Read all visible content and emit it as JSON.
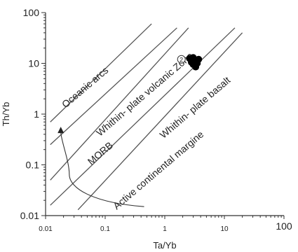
{
  "chart_data": {
    "type": "scatter",
    "xlabel": "Ta/Yb",
    "ylabel": "Th/Yb",
    "x_scale": "log",
    "y_scale": "log",
    "xlim": [
      0.01,
      100
    ],
    "ylim": [
      0.01,
      100
    ],
    "grid": false,
    "x_ticks": [
      "0.01",
      "0.1",
      "1",
      "10",
      "100"
    ],
    "y_ticks": [
      "0.01",
      "0.1",
      "1",
      "10",
      "100"
    ],
    "boundary_lines": [
      {
        "x": [
          0.012,
          0.6
        ],
        "y": [
          0.7,
          60
        ]
      },
      {
        "x": [
          0.012,
          1.6
        ],
        "y": [
          0.25,
          50
        ]
      },
      {
        "x": [
          0.012,
          2.5
        ],
        "y": [
          0.05,
          50
        ]
      },
      {
        "x": [
          0.012,
          15
        ],
        "y": [
          0.016,
          50
        ]
      },
      {
        "x": [
          0.035,
          20
        ],
        "y": [
          0.013,
          40
        ]
      }
    ],
    "zone_labels": [
      {
        "text": "Oceanic arcs",
        "x": 0.05,
        "y": 3.0
      },
      {
        "text": "Whithin- plate volcanic Zone",
        "x": 0.5,
        "y": 2.2
      },
      {
        "text": "Whithin- plate basalt",
        "x": 3.5,
        "y": 1.2
      },
      {
        "text": "MORB",
        "x": 0.09,
        "y": 0.15
      },
      {
        "text": "Active continental margine",
        "x": 0.85,
        "y": 0.07
      }
    ],
    "symbol_marker": {
      "text": "2",
      "x": 1.9,
      "y": 12
    },
    "points": [
      {
        "x": 2.8,
        "y": 10.5
      },
      {
        "x": 3.2,
        "y": 11.5
      },
      {
        "x": 3.0,
        "y": 13.0
      },
      {
        "x": 3.5,
        "y": 10.0
      },
      {
        "x": 2.6,
        "y": 12.5
      },
      {
        "x": 3.3,
        "y": 8.5
      },
      {
        "x": 3.7,
        "y": 12.0
      },
      {
        "x": 3.0,
        "y": 9.5
      }
    ],
    "trend_arrow": [
      {
        "x": 0.45,
        "y": 0.015
      },
      {
        "x": 0.06,
        "y": 0.018
      },
      {
        "x": 0.025,
        "y": 0.035
      },
      {
        "x": 0.028,
        "y": 0.12
      },
      {
        "x": 0.018,
        "y": 0.45
      }
    ]
  }
}
